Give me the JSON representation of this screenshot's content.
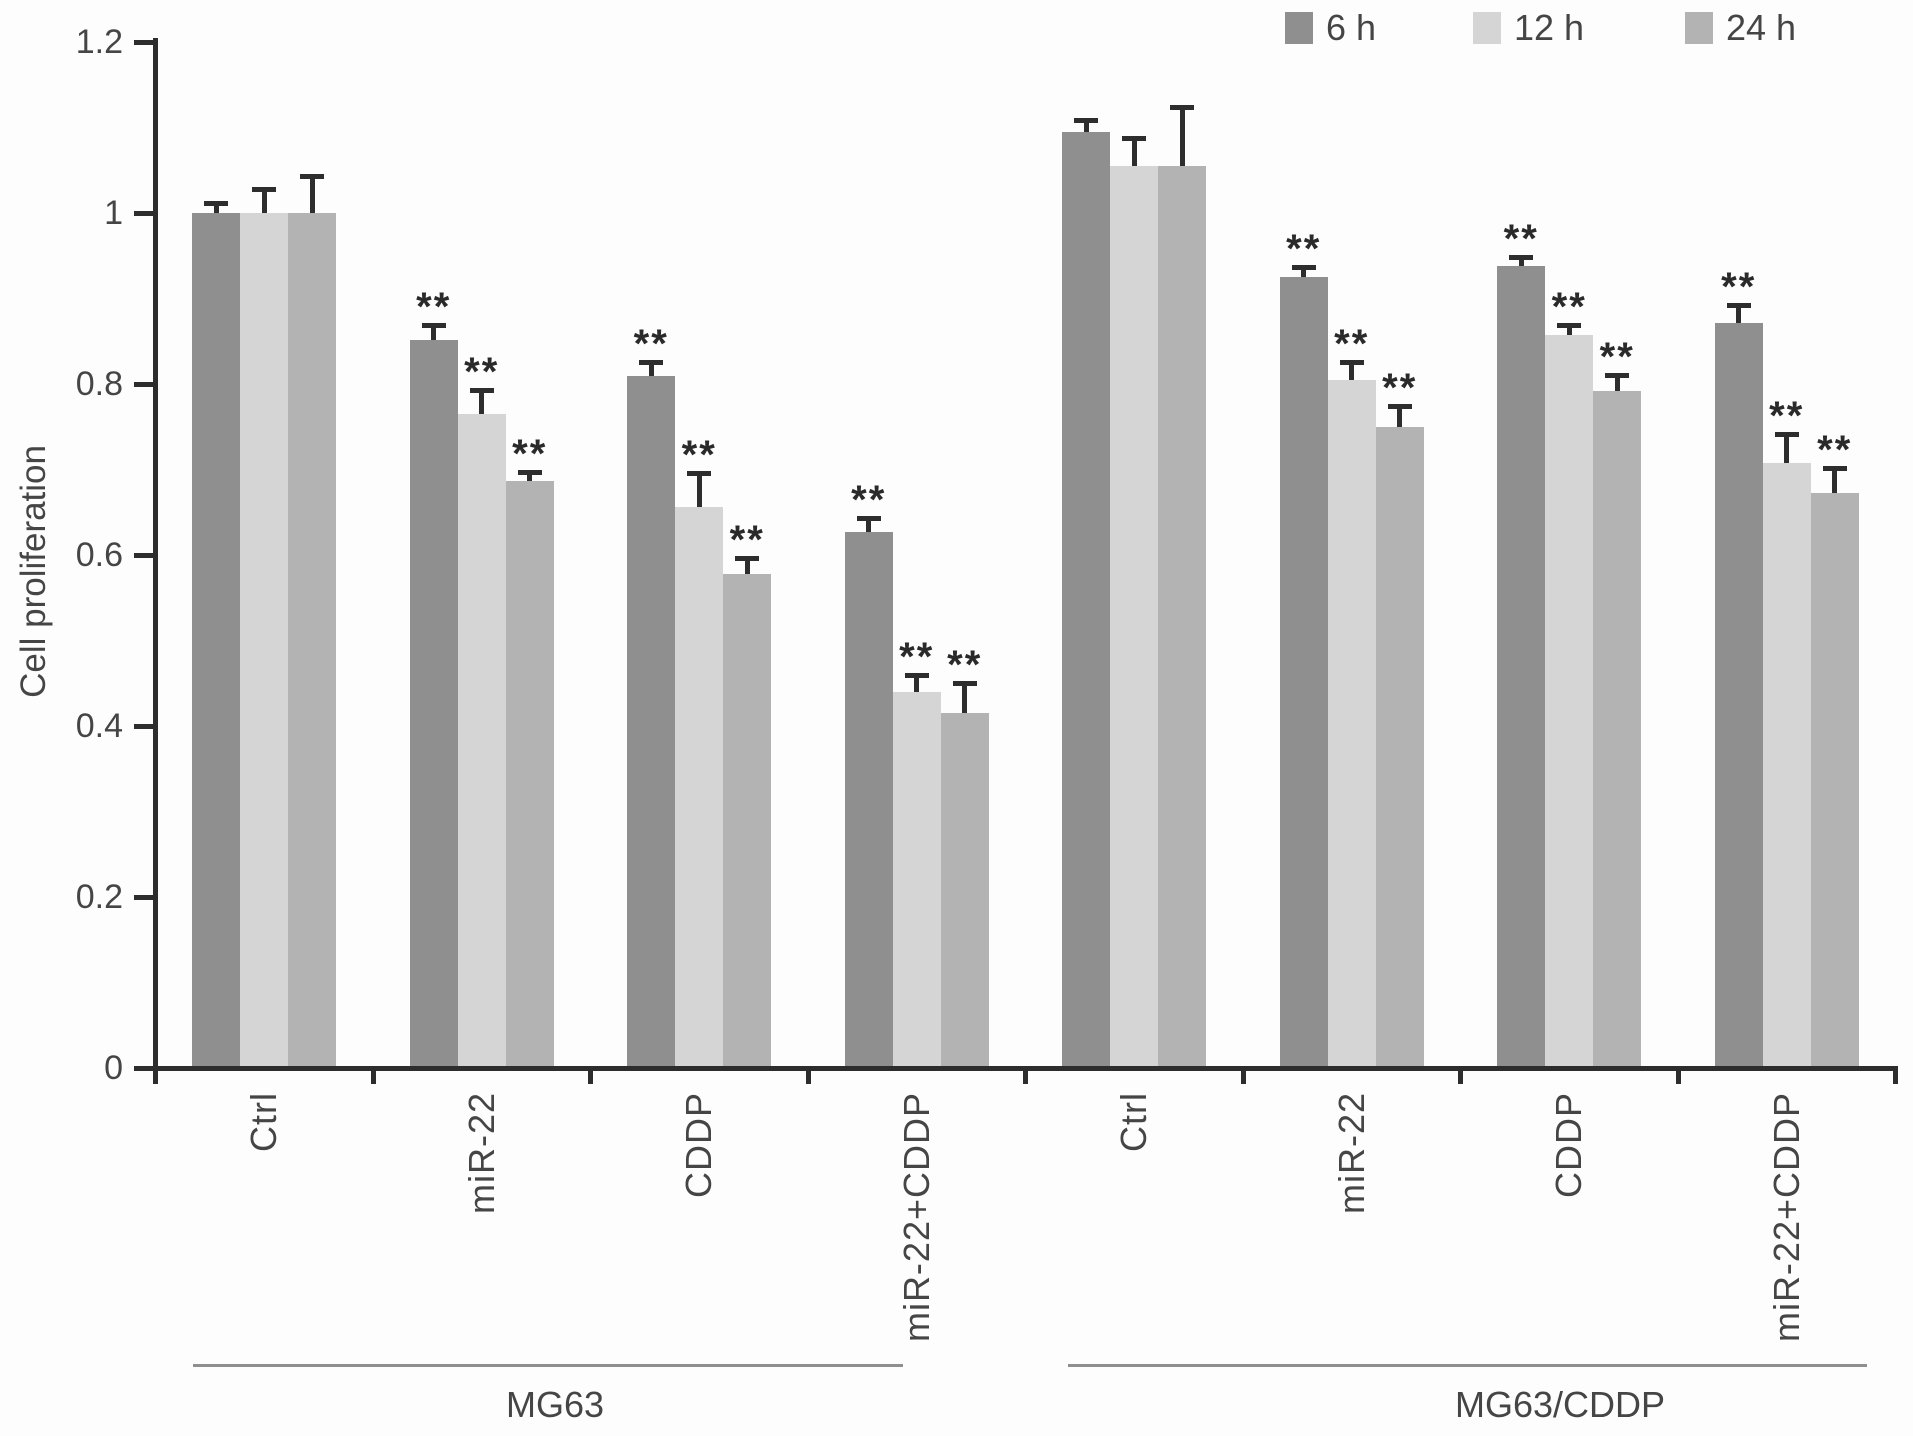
{
  "figure": {
    "background": "#fdfdfd",
    "axis_color": "#2d2d2d",
    "text_color": "#454545"
  },
  "chart_data": {
    "type": "bar",
    "title": "",
    "xlabel": "",
    "ylabel": "Cell proliferation",
    "ylim": [
      0,
      1.2
    ],
    "grid": false,
    "legend_position": "top-right",
    "significance_marker": "**",
    "yticks": [
      {
        "v": 0,
        "label": "0"
      },
      {
        "v": 0.2,
        "label": "0.2"
      },
      {
        "v": 0.4,
        "label": "0.4"
      },
      {
        "v": 0.6,
        "label": "0.6"
      },
      {
        "v": 0.8,
        "label": "0.8"
      },
      {
        "v": 1,
        "label": "1"
      },
      {
        "v": 1.2,
        "label": "1.2"
      }
    ],
    "series": [
      {
        "name": "6 h",
        "color": "#8f8f8f"
      },
      {
        "name": "12 h",
        "color": "#d5d5d5"
      },
      {
        "name": "24 h",
        "color": "#b3b3b3"
      }
    ],
    "cell_lines": [
      {
        "name": "MG63",
        "groups": [
          {
            "label": "Ctrl",
            "values": [
              1.0,
              1.0,
              1.0
            ],
            "errors": [
              0.012,
              0.028,
              0.043
            ],
            "significant": false
          },
          {
            "label": "miR-22",
            "values": [
              0.851,
              0.765,
              0.687
            ],
            "errors": [
              0.018,
              0.028,
              0.01
            ],
            "significant": true
          },
          {
            "label": "CDDP",
            "values": [
              0.809,
              0.656,
              0.578
            ],
            "errors": [
              0.017,
              0.04,
              0.018
            ],
            "significant": true
          },
          {
            "label": "miR-22+CDDP",
            "values": [
              0.627,
              0.44,
              0.415
            ],
            "errors": [
              0.016,
              0.02,
              0.035
            ],
            "significant": true
          }
        ]
      },
      {
        "name": "MG63/CDDP",
        "groups": [
          {
            "label": "Ctrl",
            "values": [
              1.095,
              1.055,
              1.055
            ],
            "errors": [
              0.014,
              0.033,
              0.069
            ],
            "significant": false
          },
          {
            "label": "miR-22",
            "values": [
              0.925,
              0.805,
              0.75
            ],
            "errors": [
              0.012,
              0.021,
              0.024
            ],
            "significant": true
          },
          {
            "label": "CDDP",
            "values": [
              0.938,
              0.857,
              0.792
            ],
            "errors": [
              0.011,
              0.012,
              0.018
            ],
            "significant": true
          },
          {
            "label": "miR-22+CDDP",
            "values": [
              0.871,
              0.708,
              0.673
            ],
            "errors": [
              0.021,
              0.034,
              0.029
            ],
            "significant": true
          }
        ]
      }
    ]
  }
}
